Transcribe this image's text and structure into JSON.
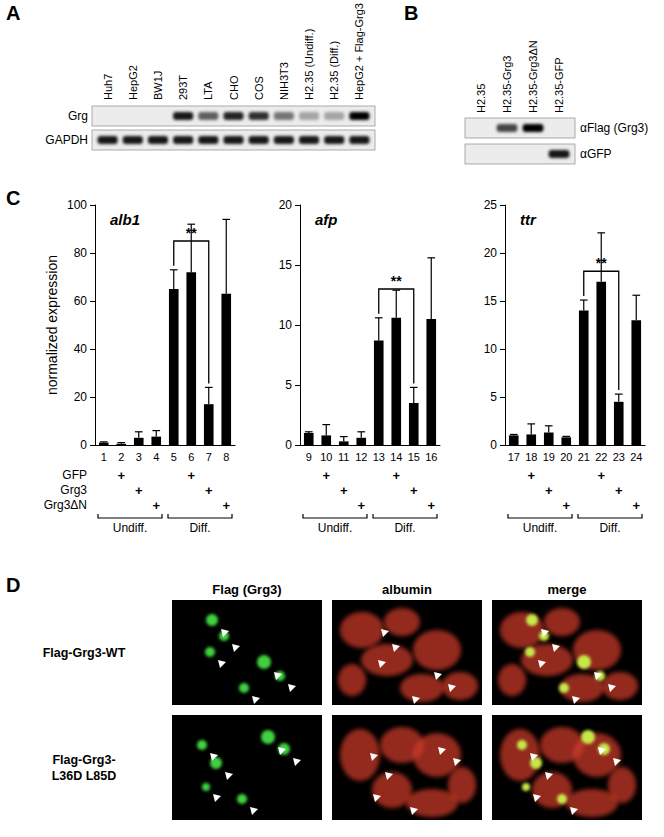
{
  "panel_labels": [
    "A",
    "B",
    "C",
    "D"
  ],
  "panel_a": {
    "lanes": [
      "Huh7",
      "HepG2",
      "BW1J",
      "293T",
      "LTA",
      "CHO",
      "COS",
      "NIH3T3",
      "H2.35 (Undiff.)",
      "H2.35 (Diff.)",
      "HepG2 + Flag-Grg3"
    ],
    "rows": [
      {
        "name": "Grg",
        "signal": [
          0,
          0,
          0,
          0.9,
          0.6,
          0.85,
          0.8,
          0.5,
          0.3,
          0.3,
          1
        ]
      },
      {
        "name": "GAPDH",
        "signal": [
          0.9,
          0.9,
          0.9,
          0.9,
          0.9,
          0.9,
          0.9,
          0.9,
          0.9,
          0.9,
          0.9
        ]
      }
    ]
  },
  "panel_b": {
    "lanes": [
      "H2.35",
      "H2.35-Grg3",
      "H2.35-Grg3ΔN",
      "H2.35-GFP"
    ],
    "rows": [
      {
        "name": "αFlag (Grg3)",
        "signal": [
          0,
          0.7,
          1,
          0
        ]
      },
      {
        "name": "αGFP",
        "signal": [
          0,
          0,
          0,
          0.9
        ]
      }
    ]
  },
  "chart_data": [
    {
      "type": "bar",
      "title": "alb1",
      "ylabel": "normalized expression",
      "categories": [
        "1",
        "2",
        "3",
        "4",
        "5",
        "6",
        "7",
        "8"
      ],
      "values": [
        1,
        0.5,
        3,
        3.5,
        65,
        72,
        17,
        63
      ],
      "errors": [
        0.3,
        0.5,
        2.5,
        2.5,
        8,
        20,
        7,
        31
      ],
      "color": "#000000",
      "ylim": [
        0,
        100
      ],
      "yticks": [
        0,
        20,
        40,
        60,
        80,
        100
      ],
      "grid": false,
      "significance": [
        {
          "from": "5",
          "to": "7",
          "label": "**"
        }
      ]
    },
    {
      "type": "bar",
      "title": "afp",
      "categories": [
        "9",
        "10",
        "11",
        "12",
        "13",
        "14",
        "15",
        "16"
      ],
      "values": [
        1,
        0.8,
        0.3,
        0.6,
        8.7,
        10.6,
        3.5,
        10.5
      ],
      "errors": [
        0.1,
        0.9,
        0.4,
        0.5,
        1.9,
        2.3,
        1.3,
        5.1
      ],
      "color": "#000000",
      "ylim": [
        0,
        20
      ],
      "yticks": [
        0,
        5,
        10,
        15,
        20
      ],
      "grid": false,
      "significance": [
        {
          "from": "13",
          "to": "15",
          "label": "**"
        }
      ]
    },
    {
      "type": "bar",
      "title": "ttr",
      "categories": [
        "17",
        "18",
        "19",
        "20",
        "21",
        "22",
        "23",
        "24"
      ],
      "values": [
        1,
        1.1,
        1.3,
        0.8,
        14,
        17,
        4.5,
        13
      ],
      "errors": [
        0.1,
        1.1,
        0.7,
        0.1,
        1.1,
        5.1,
        0.8,
        2.6
      ],
      "color": "#000000",
      "ylim": [
        0,
        25
      ],
      "yticks": [
        0,
        5,
        10,
        15,
        20,
        25
      ],
      "grid": false,
      "significance": [
        {
          "from": "21",
          "to": "23",
          "label": "**"
        }
      ]
    }
  ],
  "panel_c_conditions": {
    "rows": [
      "GFP",
      "Grg3",
      "Grg3ΔN"
    ],
    "mark": "+",
    "marks": [
      [
        false,
        true,
        false,
        false,
        false,
        true,
        false,
        false
      ],
      [
        false,
        false,
        true,
        false,
        false,
        false,
        true,
        false
      ],
      [
        false,
        false,
        false,
        true,
        false,
        false,
        false,
        true
      ]
    ],
    "groups": [
      "Undiff.",
      "Undiff.",
      "Undiff.",
      "Undiff.",
      "Diff.",
      "Diff.",
      "Diff.",
      "Diff."
    ]
  },
  "panel_d": {
    "columns": [
      "Flag (Grg3)",
      "albumin",
      "merge"
    ],
    "rows": [
      [
        "Flag-Grg3-WT"
      ],
      [
        "Flag-Grg3-",
        "L36D L85D"
      ]
    ]
  }
}
